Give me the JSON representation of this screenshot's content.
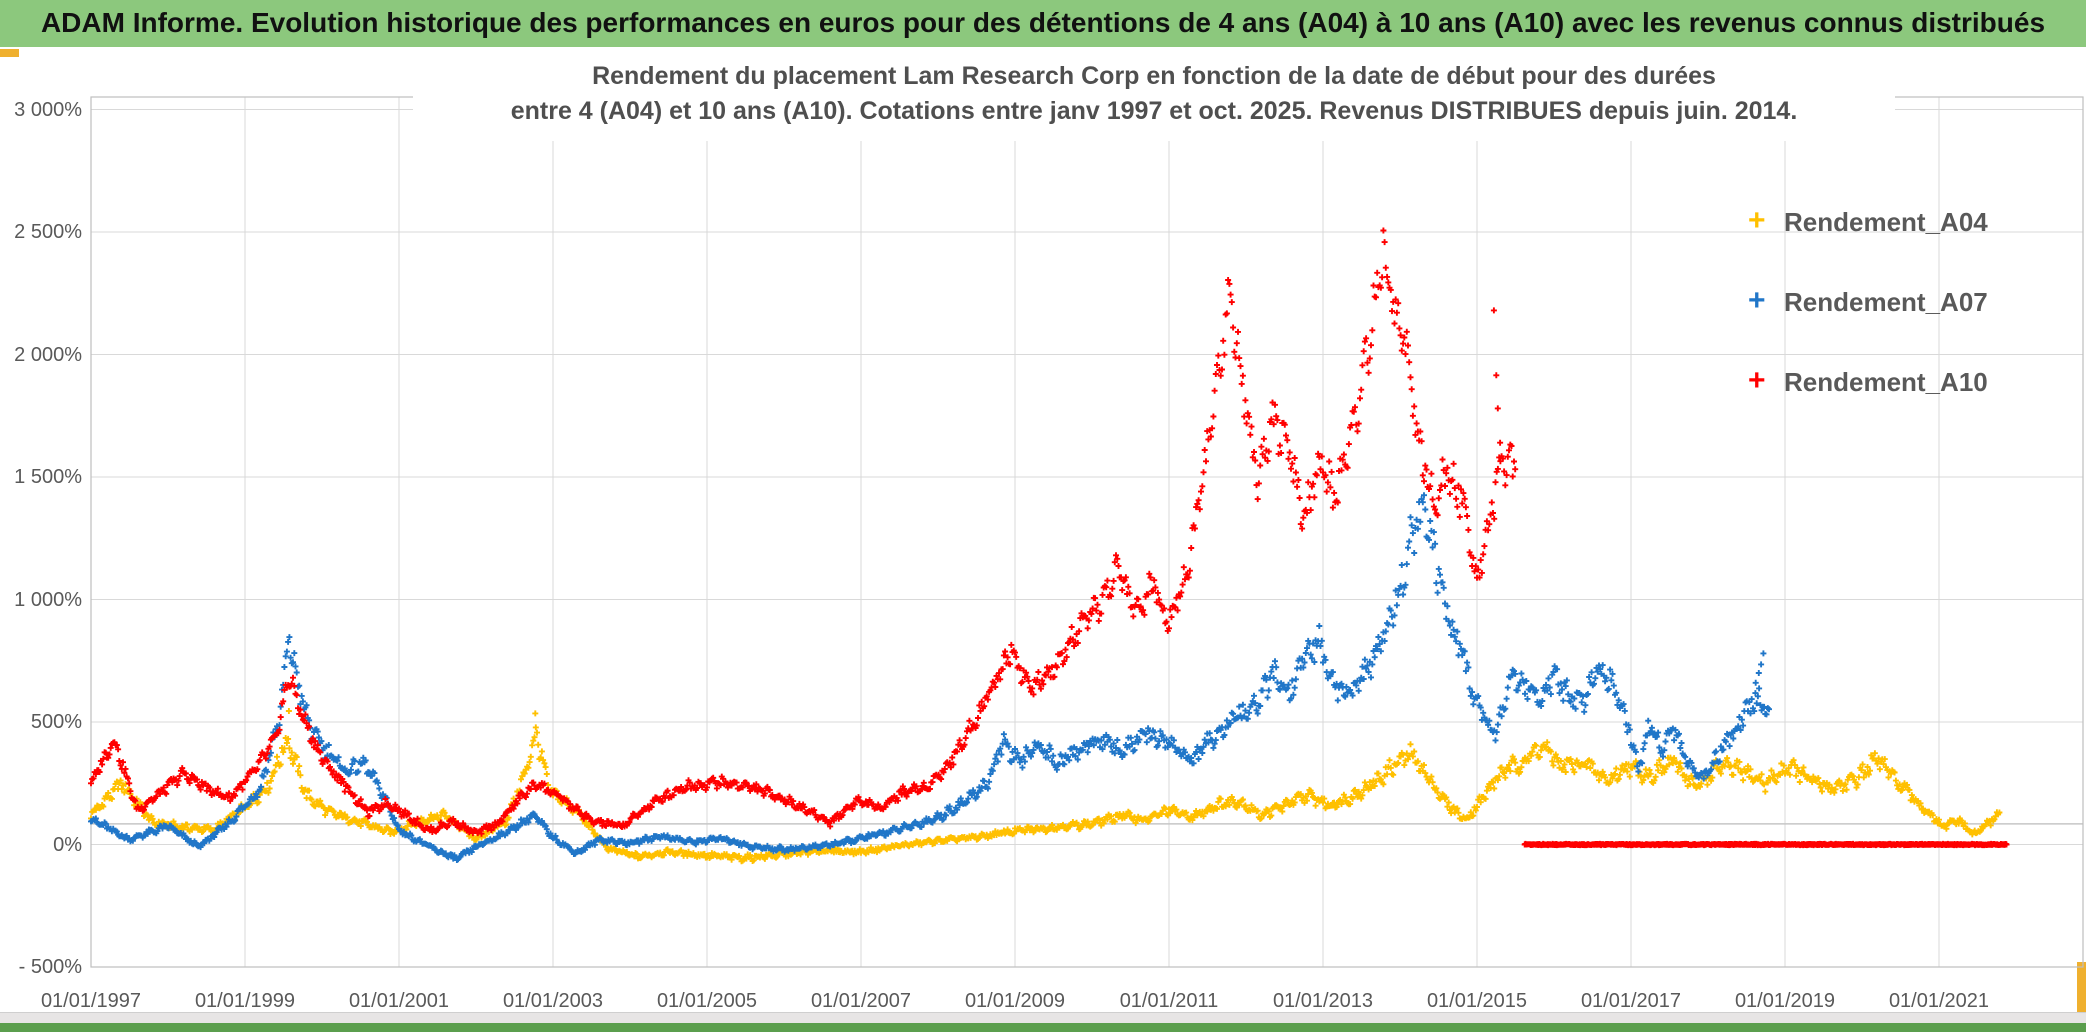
{
  "header": {
    "title": "ADAM Informe. Evolution historique des performances en euros pour des détentions de 4 ans (A04) à 10 ans (A10) avec les revenus connus distribués",
    "background_color": "#8CC87D"
  },
  "window": {
    "selection_handle_color": "#EFB02F",
    "bottom_bar_color": "#5B9E4D"
  },
  "chart_data": {
    "type": "scatter",
    "title_line1": "Rendement du placement Lam Research Corp en fonction de la date de début pour des durées",
    "title_line2": "entre 4 (A04) et 10 ans (A10). Cotations entre janv 1997 et oct. 2025. Revenus DISTRIBUES depuis juin. 2014.",
    "grid": true,
    "gridline_color": "#D9D9D9",
    "border_color": "#BFBFBF",
    "reference_line_pct": 84,
    "legend_position": "right-inside",
    "y_axis": {
      "range": [
        -500,
        3000
      ],
      "ticks": [
        {
          "v": 3000,
          "label": "3 000%"
        },
        {
          "v": 2500,
          "label": "2 500%"
        },
        {
          "v": 2000,
          "label": "2 000%"
        },
        {
          "v": 1500,
          "label": "1 500%"
        },
        {
          "v": 1000,
          "label": "1 000%"
        },
        {
          "v": 500,
          "label": "500%"
        },
        {
          "v": 0,
          "label": "0%"
        },
        {
          "v": -500,
          "label": "- 500%"
        }
      ]
    },
    "x_axis": {
      "range_years": [
        1997.0,
        2022.9
      ],
      "ticks": [
        {
          "year": 1997,
          "label": "01/01/1997"
        },
        {
          "year": 1999,
          "label": "01/01/1999"
        },
        {
          "year": 2001,
          "label": "01/01/2001"
        },
        {
          "year": 2003,
          "label": "01/01/2003"
        },
        {
          "year": 2005,
          "label": "01/01/2005"
        },
        {
          "year": 2007,
          "label": "01/01/2007"
        },
        {
          "year": 2009,
          "label": "01/01/2009"
        },
        {
          "year": 2011,
          "label": "01/01/2011"
        },
        {
          "year": 2013,
          "label": "01/01/2013"
        },
        {
          "year": 2015,
          "label": "01/01/2015"
        },
        {
          "year": 2017,
          "label": "01/01/2017"
        },
        {
          "year": 2019,
          "label": "01/01/2019"
        },
        {
          "year": 2021,
          "label": "01/01/2021"
        }
      ]
    },
    "series": [
      {
        "id": "A04",
        "name": "Rendement_A04",
        "color": "#FFC000",
        "marker": "plus",
        "points": [
          [
            1997.0,
            120
          ],
          [
            1997.4,
            250
          ],
          [
            1997.8,
            90
          ],
          [
            1998.2,
            70
          ],
          [
            1998.6,
            60
          ],
          [
            1999.0,
            150
          ],
          [
            1999.3,
            240
          ],
          [
            1999.55,
            430
          ],
          [
            1999.8,
            200
          ],
          [
            2000.1,
            130
          ],
          [
            2000.5,
            90
          ],
          [
            2000.9,
            50
          ],
          [
            2001.3,
            100
          ],
          [
            2001.6,
            120
          ],
          [
            2002.0,
            20
          ],
          [
            2002.4,
            100
          ],
          [
            2002.65,
            300
          ],
          [
            2002.78,
            460
          ],
          [
            2002.95,
            220
          ],
          [
            2003.3,
            140
          ],
          [
            2003.7,
            -15
          ],
          [
            2004.1,
            -50
          ],
          [
            2004.5,
            -30
          ],
          [
            2005.0,
            -45
          ],
          [
            2005.5,
            -55
          ],
          [
            2006.0,
            -40
          ],
          [
            2006.5,
            -25
          ],
          [
            2007.0,
            -30
          ],
          [
            2007.5,
            -5
          ],
          [
            2008.0,
            15
          ],
          [
            2008.5,
            30
          ],
          [
            2009.0,
            55
          ],
          [
            2009.5,
            70
          ],
          [
            2010.0,
            85
          ],
          [
            2010.4,
            120
          ],
          [
            2010.7,
            100
          ],
          [
            2011.0,
            140
          ],
          [
            2011.3,
            110
          ],
          [
            2011.6,
            160
          ],
          [
            2011.9,
            180
          ],
          [
            2012.2,
            120
          ],
          [
            2012.5,
            160
          ],
          [
            2012.8,
            200
          ],
          [
            2013.1,
            160
          ],
          [
            2013.4,
            200
          ],
          [
            2013.7,
            260
          ],
          [
            2013.95,
            330
          ],
          [
            2014.15,
            370
          ],
          [
            2014.35,
            280
          ],
          [
            2014.6,
            170
          ],
          [
            2014.85,
            100
          ],
          [
            2015.1,
            200
          ],
          [
            2015.3,
            290
          ],
          [
            2015.55,
            330
          ],
          [
            2015.85,
            400
          ],
          [
            2016.1,
            320
          ],
          [
            2016.4,
            330
          ],
          [
            2016.7,
            260
          ],
          [
            2016.95,
            320
          ],
          [
            2017.25,
            280
          ],
          [
            2017.55,
            340
          ],
          [
            2017.85,
            230
          ],
          [
            2018.15,
            320
          ],
          [
            2018.45,
            300
          ],
          [
            2018.75,
            250
          ],
          [
            2019.05,
            320
          ],
          [
            2019.35,
            260
          ],
          [
            2019.6,
            230
          ],
          [
            2019.9,
            260
          ],
          [
            2020.2,
            350
          ],
          [
            2020.5,
            240
          ],
          [
            2020.8,
            150
          ],
          [
            2021.05,
            70
          ],
          [
            2021.25,
            100
          ],
          [
            2021.45,
            40
          ],
          [
            2021.65,
            90
          ],
          [
            2021.8,
            130
          ]
        ],
        "extra_points": [
          [
            1999.57,
            545
          ],
          [
            2002.77,
            535
          ]
        ]
      },
      {
        "id": "A07",
        "name": "Rendement_A07",
        "color": "#2076C8",
        "marker": "plus",
        "points": [
          [
            1997.0,
            105
          ],
          [
            1997.5,
            20
          ],
          [
            1998.0,
            75
          ],
          [
            1998.4,
            -10
          ],
          [
            1998.8,
            90
          ],
          [
            1999.2,
            230
          ],
          [
            1999.45,
            520
          ],
          [
            1999.57,
            840
          ],
          [
            1999.7,
            640
          ],
          [
            1999.85,
            470
          ],
          [
            2000.05,
            390
          ],
          [
            2000.3,
            300
          ],
          [
            2000.55,
            330
          ],
          [
            2000.8,
            200
          ],
          [
            2001.0,
            60
          ],
          [
            2001.25,
            15
          ],
          [
            2001.5,
            -25
          ],
          [
            2001.75,
            -60
          ],
          [
            2002.0,
            -10
          ],
          [
            2002.2,
            20
          ],
          [
            2002.45,
            60
          ],
          [
            2002.75,
            120
          ],
          [
            2003.0,
            30
          ],
          [
            2003.3,
            -35
          ],
          [
            2003.6,
            20
          ],
          [
            2004.0,
            5
          ],
          [
            2004.4,
            35
          ],
          [
            2004.8,
            10
          ],
          [
            2005.2,
            25
          ],
          [
            2005.6,
            -10
          ],
          [
            2006.0,
            -20
          ],
          [
            2006.4,
            -10
          ],
          [
            2006.8,
            10
          ],
          [
            2007.2,
            40
          ],
          [
            2007.6,
            70
          ],
          [
            2008.0,
            110
          ],
          [
            2008.35,
            175
          ],
          [
            2008.65,
            255
          ],
          [
            2008.85,
            420
          ],
          [
            2009.05,
            330
          ],
          [
            2009.3,
            415
          ],
          [
            2009.55,
            330
          ],
          [
            2009.8,
            380
          ],
          [
            2010.1,
            430
          ],
          [
            2010.4,
            380
          ],
          [
            2010.7,
            450
          ],
          [
            2011.0,
            420
          ],
          [
            2011.3,
            340
          ],
          [
            2011.6,
            450
          ],
          [
            2011.85,
            510
          ],
          [
            2012.1,
            555
          ],
          [
            2012.35,
            690
          ],
          [
            2012.55,
            620
          ],
          [
            2012.8,
            790
          ],
          [
            2012.95,
            820
          ],
          [
            2013.15,
            650
          ],
          [
            2013.35,
            610
          ],
          [
            2013.55,
            700
          ],
          [
            2013.75,
            810
          ],
          [
            2013.95,
            1000
          ],
          [
            2014.15,
            1250
          ],
          [
            2014.3,
            1370
          ],
          [
            2014.45,
            1180
          ],
          [
            2014.6,
            950
          ],
          [
            2014.75,
            840
          ],
          [
            2014.95,
            620
          ],
          [
            2015.1,
            520
          ],
          [
            2015.25,
            460
          ],
          [
            2015.45,
            700
          ],
          [
            2015.6,
            650
          ],
          [
            2015.8,
            600
          ],
          [
            2016.0,
            680
          ],
          [
            2016.2,
            600
          ],
          [
            2016.35,
            570
          ],
          [
            2016.55,
            720
          ],
          [
            2016.75,
            680
          ],
          [
            2016.95,
            500
          ],
          [
            2017.1,
            310
          ],
          [
            2017.25,
            500
          ],
          [
            2017.4,
            380
          ],
          [
            2017.55,
            480
          ],
          [
            2017.7,
            350
          ],
          [
            2017.9,
            260
          ],
          [
            2018.1,
            350
          ],
          [
            2018.3,
            450
          ],
          [
            2018.5,
            550
          ],
          [
            2018.65,
            600
          ],
          [
            2018.8,
            520
          ]
        ],
        "extra_points": [
          [
            2018.62,
            660
          ],
          [
            2018.66,
            700
          ],
          [
            2018.69,
            735
          ],
          [
            2018.72,
            780
          ]
        ]
      },
      {
        "id": "A10",
        "name": "Rendement_A10",
        "color": "#FF0000",
        "marker": "plus",
        "points": [
          [
            1997.0,
            250
          ],
          [
            1997.3,
            430
          ],
          [
            1997.6,
            140
          ],
          [
            1997.9,
            210
          ],
          [
            1998.2,
            290
          ],
          [
            1998.5,
            230
          ],
          [
            1998.8,
            190
          ],
          [
            1999.1,
            290
          ],
          [
            1999.4,
            430
          ],
          [
            1999.57,
            690
          ],
          [
            1999.75,
            520
          ],
          [
            2000.0,
            350
          ],
          [
            2000.3,
            240
          ],
          [
            2000.6,
            130
          ],
          [
            2000.85,
            170
          ],
          [
            2001.1,
            120
          ],
          [
            2001.4,
            55
          ],
          [
            2001.7,
            95
          ],
          [
            2002.0,
            45
          ],
          [
            2002.3,
            90
          ],
          [
            2002.6,
            200
          ],
          [
            2002.8,
            250
          ],
          [
            2003.1,
            190
          ],
          [
            2003.5,
            95
          ],
          [
            2003.9,
            75
          ],
          [
            2004.3,
            170
          ],
          [
            2004.7,
            235
          ],
          [
            2005.1,
            255
          ],
          [
            2005.5,
            240
          ],
          [
            2005.9,
            200
          ],
          [
            2006.3,
            140
          ],
          [
            2006.6,
            90
          ],
          [
            2006.95,
            180
          ],
          [
            2007.25,
            150
          ],
          [
            2007.55,
            215
          ],
          [
            2007.85,
            235
          ],
          [
            2008.15,
            330
          ],
          [
            2008.45,
            490
          ],
          [
            2008.7,
            640
          ],
          [
            2008.95,
            800
          ],
          [
            2009.2,
            630
          ],
          [
            2009.5,
            710
          ],
          [
            2009.8,
            860
          ],
          [
            2010.05,
            950
          ],
          [
            2010.35,
            1130
          ],
          [
            2010.55,
            950
          ],
          [
            2010.8,
            1060
          ],
          [
            2011.0,
            920
          ],
          [
            2011.25,
            1130
          ],
          [
            2011.5,
            1620
          ],
          [
            2011.8,
            2260
          ],
          [
            2011.95,
            1890
          ],
          [
            2012.15,
            1500
          ],
          [
            2012.35,
            1750
          ],
          [
            2012.55,
            1610
          ],
          [
            2012.75,
            1320
          ],
          [
            2012.95,
            1560
          ],
          [
            2013.15,
            1420
          ],
          [
            2013.4,
            1700
          ],
          [
            2013.6,
            2060
          ],
          [
            2013.78,
            2420
          ],
          [
            2013.95,
            2160
          ],
          [
            2014.1,
            2000
          ],
          [
            2014.25,
            1620
          ],
          [
            2014.45,
            1370
          ],
          [
            2014.6,
            1520
          ],
          [
            2014.8,
            1420
          ],
          [
            2015.0,
            1090
          ],
          [
            2015.2,
            1380
          ],
          [
            2015.35,
            1560
          ],
          [
            2015.5,
            1540
          ]
        ],
        "extra_points": [
          [
            2015.22,
            2180
          ],
          [
            2015.25,
            1915
          ],
          [
            2015.27,
            1780
          ],
          [
            2015.3,
            1640
          ]
        ],
        "flat_zero": [
          2015.62,
          2021.88
        ]
      }
    ]
  }
}
